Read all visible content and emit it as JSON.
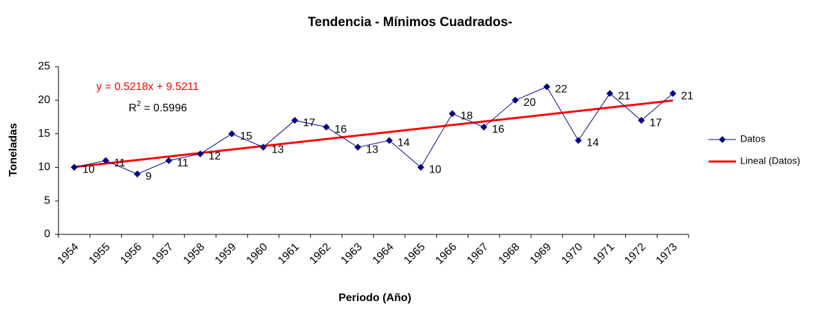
{
  "chart_data": {
    "type": "line",
    "title": "Tendencia - Mínimos Cuadrados-",
    "x_label": "Periodo (Año)",
    "y_label": "Toneladas",
    "categories": [
      "1954",
      "1955",
      "1956",
      "1957",
      "1958",
      "1959",
      "1960",
      "1961",
      "1962",
      "1963",
      "1964",
      "1965",
      "1966",
      "1967",
      "1968",
      "1969",
      "1970",
      "1971",
      "1972",
      "1973"
    ],
    "series": [
      {
        "name": "Datos",
        "color": "#000080",
        "values": [
          10,
          11,
          9,
          11,
          12,
          15,
          13,
          17,
          16,
          13,
          14,
          10,
          18,
          16,
          20,
          22,
          14,
          21,
          17,
          21
        ]
      }
    ],
    "trendline": {
      "name": "Lineal (Datos)",
      "color": "#ff0000",
      "slope": 0.5218,
      "intercept": 9.5211,
      "equation": "y = 0.5218x + 9.5211",
      "r2_label": "R",
      "r2_sup": "2",
      "r2_text": " = 0.5996"
    },
    "ylim": [
      0,
      25
    ],
    "yticks": [
      0,
      5,
      10,
      15,
      20,
      25
    ],
    "legend": "right"
  }
}
